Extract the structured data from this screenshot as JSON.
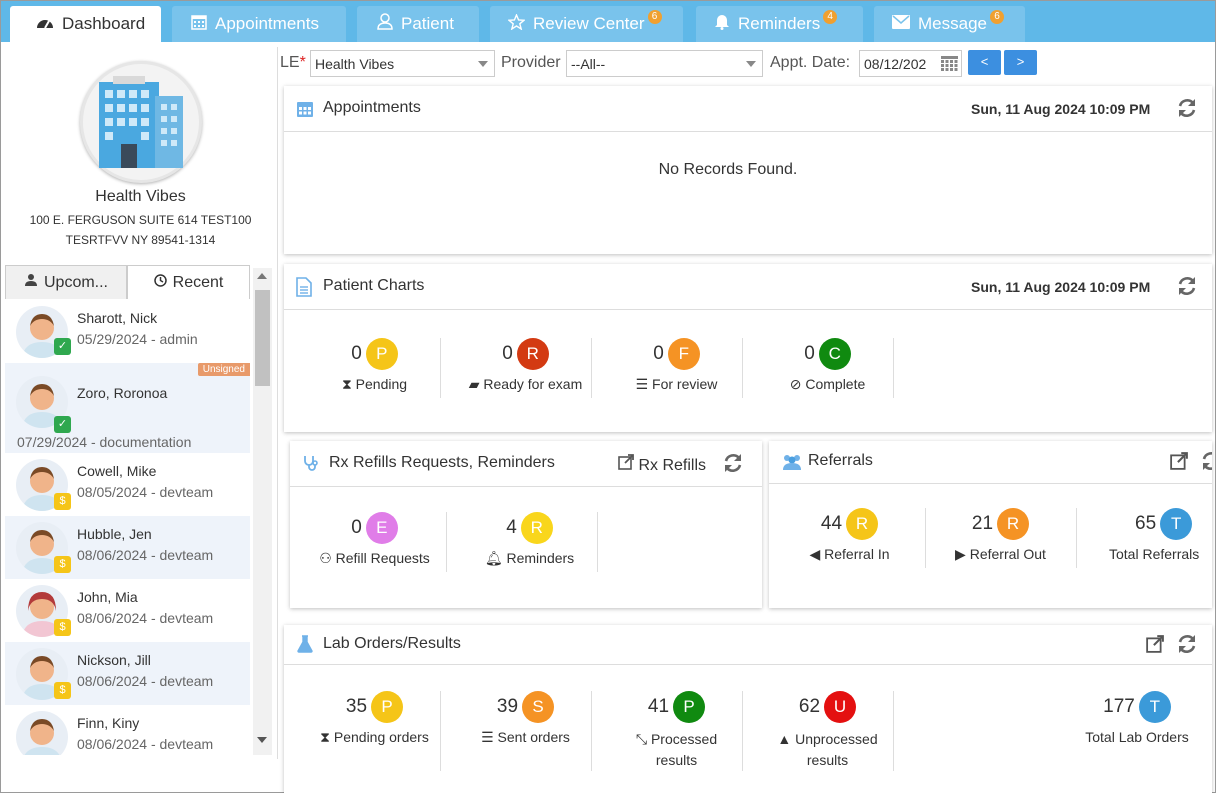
{
  "tabs": [
    {
      "label": "Dashboard",
      "icon": "dashboard-icon",
      "badge": ""
    },
    {
      "label": "Appointments",
      "icon": "calendar-icon",
      "badge": ""
    },
    {
      "label": "Patient",
      "icon": "user-icon",
      "badge": ""
    },
    {
      "label": "Review Center",
      "icon": "star-icon",
      "badge": "6"
    },
    {
      "label": "Reminders",
      "icon": "bell-icon",
      "badge": "4"
    },
    {
      "label": "Message",
      "icon": "envelope-icon",
      "badge": "6"
    }
  ],
  "org": {
    "name": "Health Vibes",
    "addr1": "100 E. FERGUSON SUITE 614 TEST100",
    "addr2": "TESRTFVV NY 89541-1314"
  },
  "left_tabs": {
    "upcoming": "Upcom...",
    "recent": "Recent"
  },
  "patients": [
    {
      "name": "Sharott, Nick",
      "meta": "05/29/2024 - admin",
      "status": "check",
      "unsigned": ""
    },
    {
      "name": "Zoro, Roronoa",
      "meta": "07/29/2024 - documentation",
      "status": "check",
      "unsigned": "Unsigned"
    },
    {
      "name": "Cowell, Mike",
      "meta": "08/05/2024 - devteam",
      "status": "pending",
      "unsigned": ""
    },
    {
      "name": "Hubble, Jen",
      "meta": "08/06/2024 - devteam",
      "status": "pending",
      "unsigned": ""
    },
    {
      "name": "John, Mia",
      "meta": "08/06/2024 - devteam",
      "status": "pending",
      "unsigned": ""
    },
    {
      "name": "Nickson, Jill",
      "meta": "08/06/2024 - devteam",
      "status": "pending",
      "unsigned": ""
    },
    {
      "name": "Finn, Kiny",
      "meta": "08/06/2024 - devteam",
      "status": "pending",
      "unsigned": ""
    }
  ],
  "filters": {
    "le_label": "LE",
    "le_required": "*",
    "le_value": "Health Vibes",
    "provider_label": "Provider",
    "provider_value": "--All--",
    "date_label": "Appt. Date:",
    "date_value": "08/12/202",
    "prev": "<",
    "next": ">"
  },
  "appointments": {
    "title": "Appointments",
    "date": "Sun, 11 Aug 2024 10:09 PM",
    "empty": "No Records Found."
  },
  "patient_charts": {
    "title": "Patient Charts",
    "date": "Sun, 11 Aug 2024 10:09 PM",
    "stats": [
      {
        "count": "0",
        "letter": "P",
        "color": "#f5c518",
        "label": "Pending",
        "icon": "hourglass-icon"
      },
      {
        "count": "0",
        "letter": "R",
        "color": "#d33a12",
        "label": "Ready for exam",
        "icon": "book-icon"
      },
      {
        "count": "0",
        "letter": "F",
        "color": "#f59324",
        "label": "For review",
        "icon": "list-icon"
      },
      {
        "count": "0",
        "letter": "C",
        "color": "#108a10",
        "label": "Complete",
        "icon": "check-circle-icon"
      }
    ]
  },
  "rx": {
    "title": "Rx Refills Requests, Reminders",
    "link": "Rx Refills",
    "stats": [
      {
        "count": "0",
        "letter": "E",
        "color": "#e07de8",
        "label": "Refill Requests",
        "icon": "handshake-icon"
      },
      {
        "count": "4",
        "letter": "R",
        "color": "#f9d61c",
        "label": "Reminders",
        "icon": "bell-icon"
      }
    ]
  },
  "referrals": {
    "title": "Referrals",
    "stats": [
      {
        "count": "44",
        "letter": "R",
        "color": "#f5c518",
        "label": "Referral In",
        "icon": "arrow-in-icon"
      },
      {
        "count": "21",
        "letter": "R",
        "color": "#f59324",
        "label": "Referral Out",
        "icon": "arrow-out-icon"
      },
      {
        "count": "65",
        "letter": "T",
        "color": "#3b9ad9",
        "label": "Total Referrals",
        "icon": ""
      }
    ]
  },
  "lab": {
    "title": "Lab Orders/Results",
    "stats": [
      {
        "count": "35",
        "letter": "P",
        "color": "#f5c518",
        "label": "Pending orders",
        "icon": "hourglass-icon"
      },
      {
        "count": "39",
        "letter": "S",
        "color": "#f59324",
        "label": "Sent orders",
        "icon": "list-icon"
      },
      {
        "count": "41",
        "letter": "P",
        "color": "#108a10",
        "label": "Processed results",
        "icon": "compress-icon"
      },
      {
        "count": "62",
        "letter": "U",
        "color": "#e41010",
        "label": "Unprocessed results",
        "icon": "warning-icon"
      },
      {
        "count": "177",
        "letter": "T",
        "color": "#3b9ad9",
        "label": "Total Lab Orders",
        "icon": ""
      }
    ]
  }
}
